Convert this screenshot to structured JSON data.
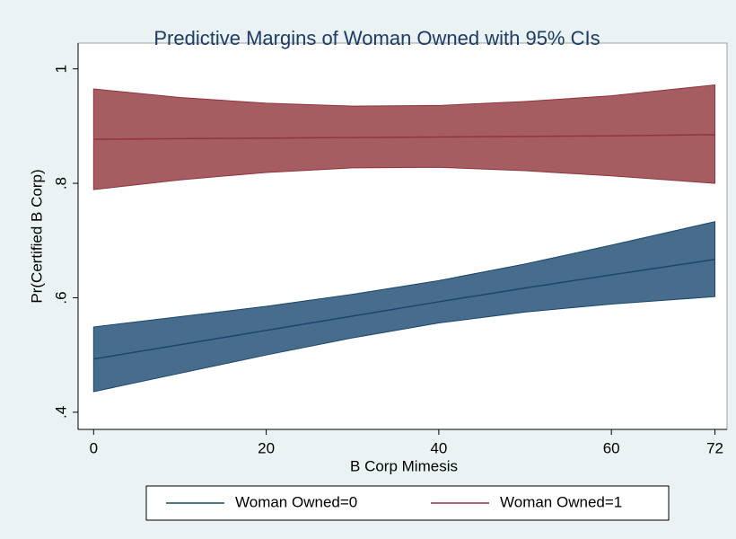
{
  "chart_data": {
    "type": "band-line",
    "title": "Predictive Margins of Woman Owned with 95% CIs",
    "x_label": "B Corp Mimesis",
    "y_label": "Pr(Certified B Corp)",
    "x": [
      0,
      10,
      20,
      30,
      40,
      50,
      60,
      72
    ],
    "series": [
      {
        "name": "Woman Owned=0",
        "color": "#1a476f",
        "values": [
          0.493,
          0.518,
          0.543,
          0.568,
          0.593,
          0.617,
          0.64,
          0.667
        ],
        "lower": [
          0.436,
          0.468,
          0.5,
          0.53,
          0.556,
          0.575,
          0.589,
          0.602
        ],
        "upper": [
          0.549,
          0.567,
          0.585,
          0.606,
          0.63,
          0.659,
          0.692,
          0.733
        ]
      },
      {
        "name": "Woman Owned=1",
        "color": "#90353b",
        "values": [
          0.877,
          0.878,
          0.879,
          0.88,
          0.881,
          0.882,
          0.883,
          0.885
        ],
        "lower": [
          0.789,
          0.806,
          0.819,
          0.827,
          0.828,
          0.822,
          0.813,
          0.8
        ],
        "upper": [
          0.965,
          0.95,
          0.94,
          0.935,
          0.936,
          0.943,
          0.953,
          0.972
        ]
      }
    ],
    "xlim": [
      -1.8,
      73.4
    ],
    "ylim": [
      0.37,
      1.045
    ],
    "xticks": [
      0,
      20,
      40,
      60,
      72
    ],
    "yticks": [
      {
        "value": 0.4,
        "label": ".4"
      },
      {
        "value": 0.6,
        "label": ".6"
      },
      {
        "value": 0.8,
        "label": ".8"
      },
      1
    ],
    "legend": "bottom"
  }
}
